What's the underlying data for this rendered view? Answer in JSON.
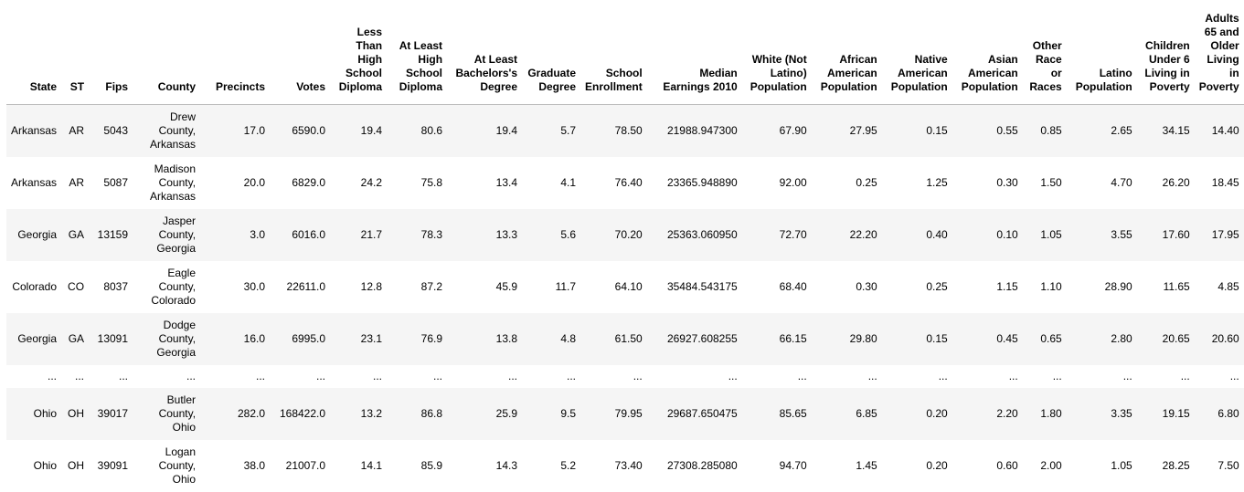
{
  "columns": [
    "State",
    "ST",
    "Fips",
    "County",
    "Precincts",
    "Votes",
    "Less Than High School Diploma",
    "At Least High School Diploma",
    "At Least Bachelors's Degree",
    "Graduate Degree",
    "School Enrollment",
    "Median Earnings 2010",
    "White (Not Latino) Population",
    "African American Population",
    "Native American Population",
    "Asian American Population",
    "Other Race or Races",
    "Latino Population",
    "Children Under 6 Living in Poverty",
    "Adults 65 and Older Living in Poverty"
  ],
  "rows": [
    [
      "Arkansas",
      "AR",
      "5043",
      "Drew County, Arkansas",
      "17.0",
      "6590.0",
      "19.4",
      "80.6",
      "19.4",
      "5.7",
      "78.50",
      "21988.947300",
      "67.90",
      "27.95",
      "0.15",
      "0.55",
      "0.85",
      "2.65",
      "34.15",
      "14.40"
    ],
    [
      "Arkansas",
      "AR",
      "5087",
      "Madison County, Arkansas",
      "20.0",
      "6829.0",
      "24.2",
      "75.8",
      "13.4",
      "4.1",
      "76.40",
      "23365.948890",
      "92.00",
      "0.25",
      "1.25",
      "0.30",
      "1.50",
      "4.70",
      "26.20",
      "18.45"
    ],
    [
      "Georgia",
      "GA",
      "13159",
      "Jasper County, Georgia",
      "3.0",
      "6016.0",
      "21.7",
      "78.3",
      "13.3",
      "5.6",
      "70.20",
      "25363.060950",
      "72.70",
      "22.20",
      "0.40",
      "0.10",
      "1.05",
      "3.55",
      "17.60",
      "17.95"
    ],
    [
      "Colorado",
      "CO",
      "8037",
      "Eagle County, Colorado",
      "30.0",
      "22611.0",
      "12.8",
      "87.2",
      "45.9",
      "11.7",
      "64.10",
      "35484.543175",
      "68.40",
      "0.30",
      "0.25",
      "1.15",
      "1.10",
      "28.90",
      "11.65",
      "4.85"
    ],
    [
      "Georgia",
      "GA",
      "13091",
      "Dodge County, Georgia",
      "16.0",
      "6995.0",
      "23.1",
      "76.9",
      "13.8",
      "4.8",
      "61.50",
      "26927.608255",
      "66.15",
      "29.80",
      "0.15",
      "0.45",
      "0.65",
      "2.80",
      "20.65",
      "20.60"
    ],
    [
      "...",
      "...",
      "...",
      "...",
      "...",
      "...",
      "...",
      "...",
      "...",
      "...",
      "...",
      "...",
      "...",
      "...",
      "...",
      "...",
      "...",
      "...",
      "...",
      "..."
    ],
    [
      "Ohio",
      "OH",
      "39017",
      "Butler County, Ohio",
      "282.0",
      "168422.0",
      "13.2",
      "86.8",
      "25.9",
      "9.5",
      "79.95",
      "29687.650475",
      "85.65",
      "6.85",
      "0.20",
      "2.20",
      "1.80",
      "3.35",
      "19.15",
      "6.80"
    ],
    [
      "Ohio",
      "OH",
      "39091",
      "Logan County, Ohio",
      "38.0",
      "21007.0",
      "14.1",
      "85.9",
      "14.3",
      "5.2",
      "73.40",
      "27308.285080",
      "94.70",
      "1.45",
      "0.20",
      "0.60",
      "2.00",
      "1.05",
      "28.25",
      "7.50"
    ]
  ]
}
